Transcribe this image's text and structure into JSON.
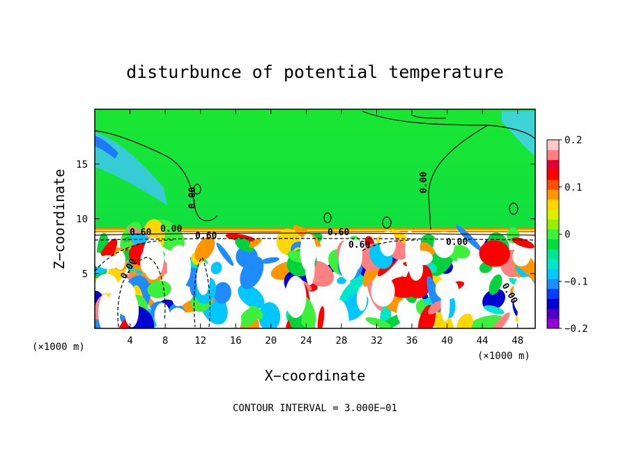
{
  "chart_data": {
    "type": "heatmap",
    "title": "disturbunce of potential temperature",
    "xlabel": "X−coordinate",
    "ylabel": "Z−coordinate",
    "x_unit_label": "(×1000 m)",
    "y_unit_label": "(×1000 m)",
    "xlim": [
      0,
      50
    ],
    "ylim": [
      0,
      20
    ],
    "x_ticks": [
      4,
      8,
      12,
      16,
      20,
      24,
      28,
      32,
      36,
      40,
      44,
      48
    ],
    "x_tick_labels": [
      "4",
      "8",
      "12",
      "16",
      "20",
      "24",
      "28",
      "32",
      "36",
      "40",
      "44",
      "48"
    ],
    "y_ticks": [
      5,
      10,
      15
    ],
    "y_tick_labels": [
      "5",
      "10",
      "15"
    ],
    "colorbar": {
      "range": [
        -0.2,
        0.2
      ],
      "ticks": [
        0.2,
        0.1,
        0,
        -0.1,
        -0.2
      ],
      "tick_labels": [
        "0.2",
        "0.1",
        "0",
        "−0.1",
        "−0.2"
      ],
      "colors": [
        "#9400d3",
        "#4b00c8",
        "#0000d0",
        "#0a3cff",
        "#1e8cff",
        "#00c8ff",
        "#00e6c8",
        "#00e68c",
        "#00dc3c",
        "#3cf03c",
        "#96f000",
        "#dcf000",
        "#ffd700",
        "#ff9600",
        "#ff5000",
        "#ff0000",
        "#e60032",
        "#ff8080",
        "#ffc8c8"
      ]
    },
    "contour_labels": [
      "0.00",
      "0.00",
      "0.00",
      "0.00",
      "0.60",
      "0.60",
      "0.60",
      "0.60",
      "0.00",
      "0.00"
    ],
    "annotation": "CONTOUR INTERVAL = 3.000E−01",
    "grid": false,
    "legend": "colorbar right"
  }
}
